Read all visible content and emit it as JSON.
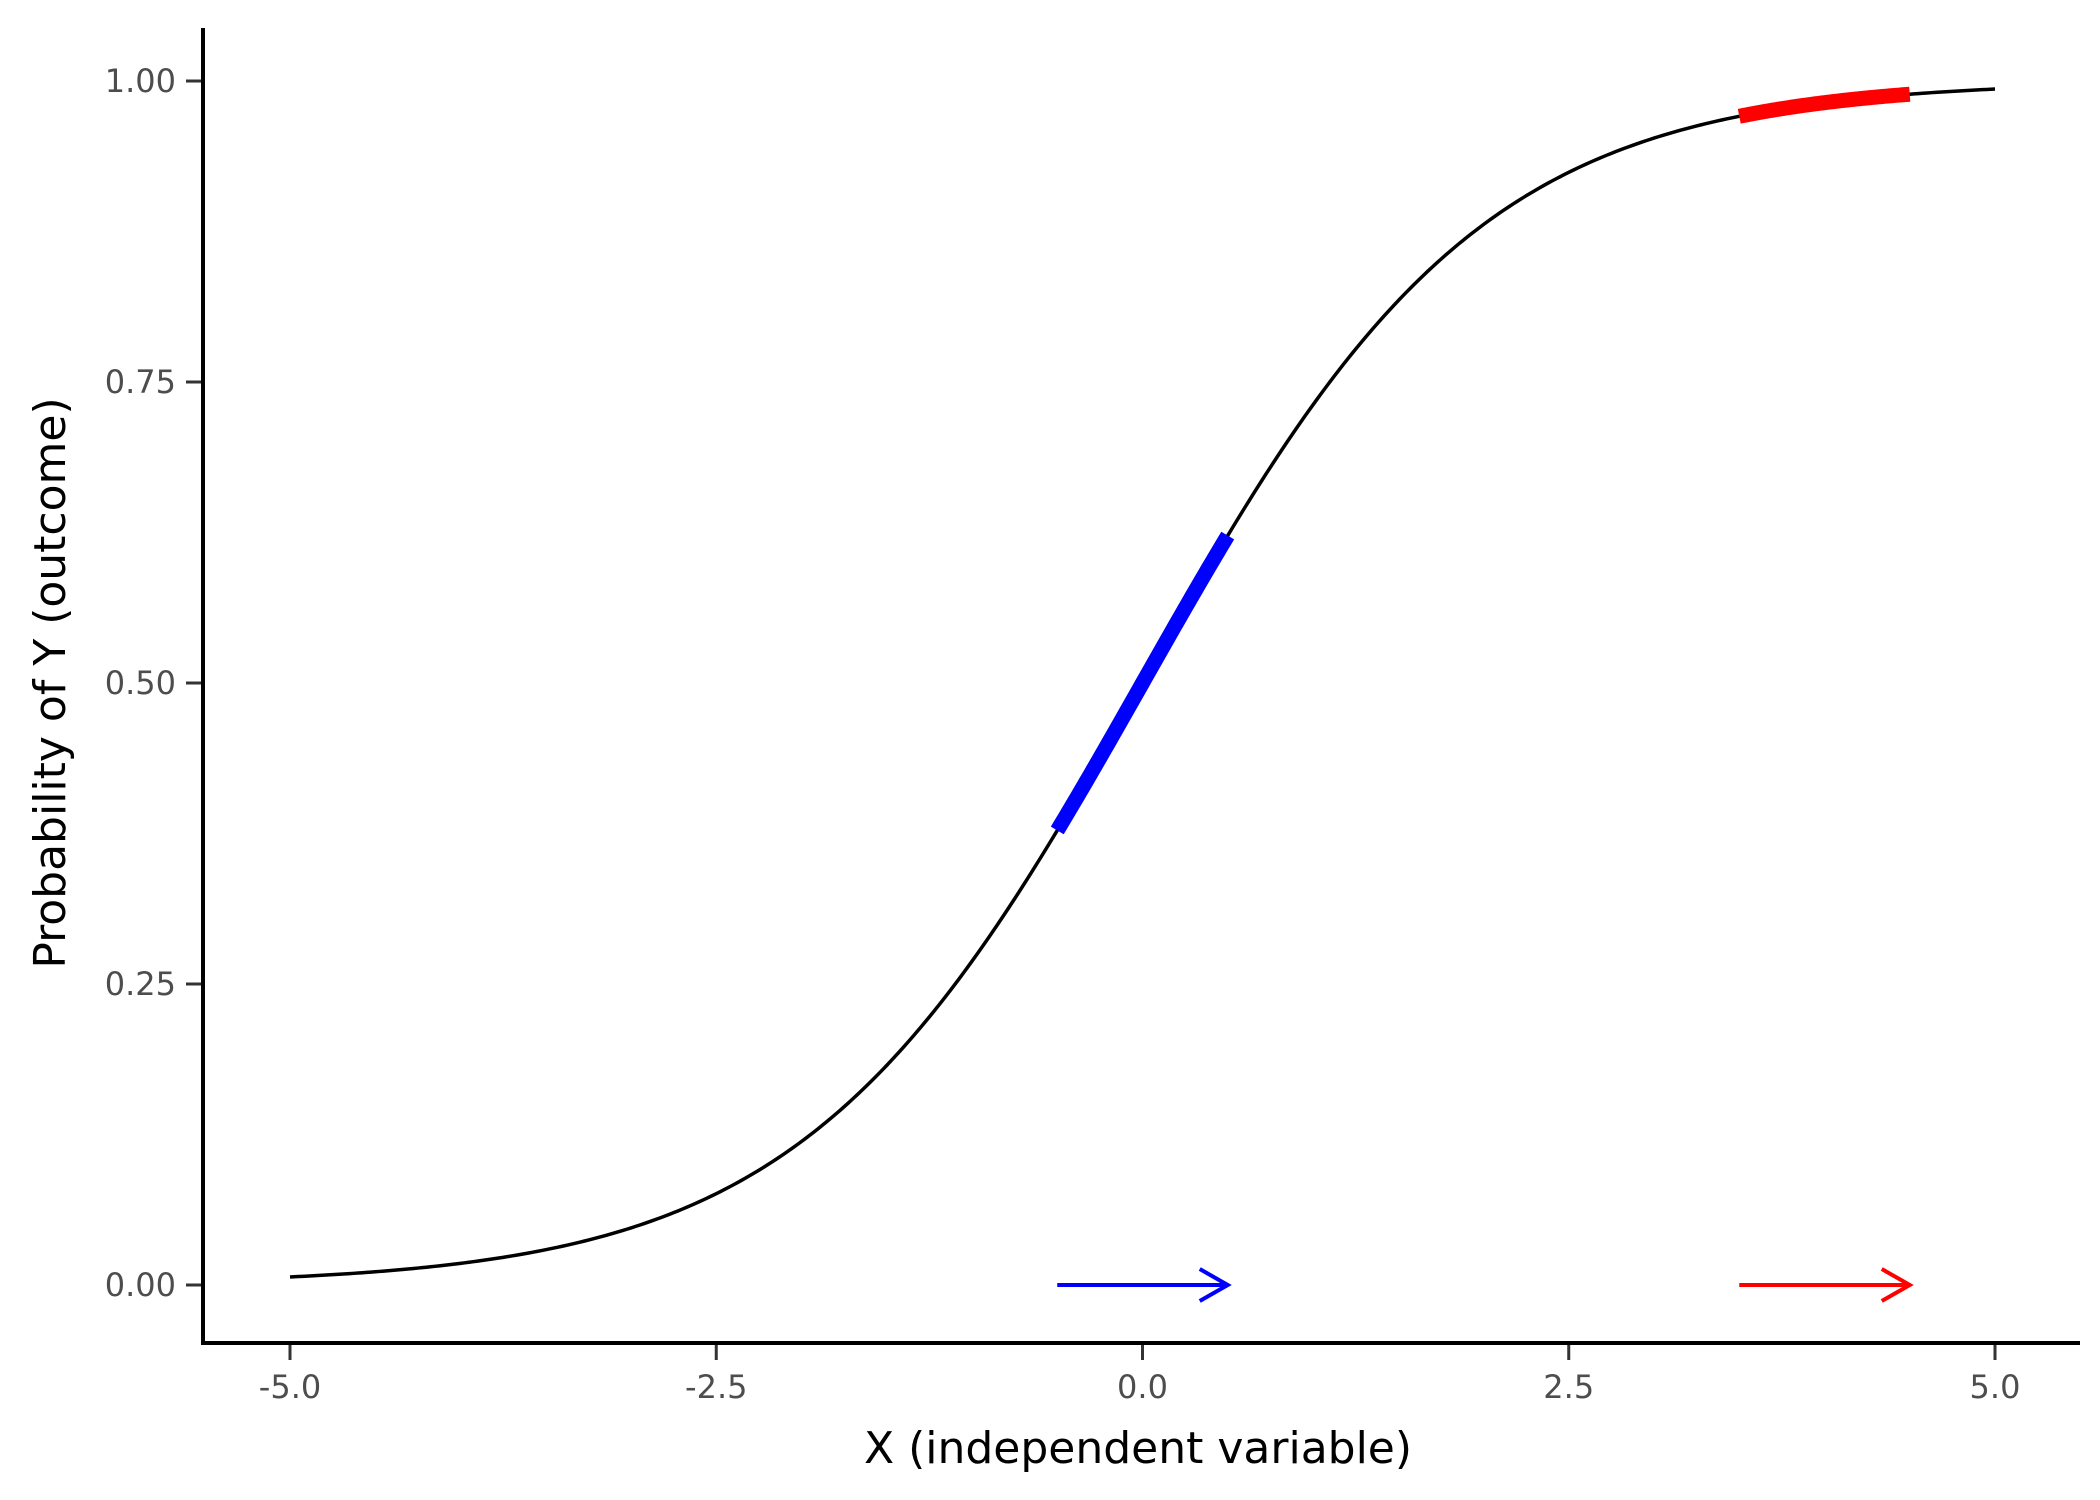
{
  "chart_data": {
    "type": "line",
    "title": "",
    "xlabel": "X (independent variable)",
    "ylabel": "Probability of Y (outcome)",
    "xlim": [
      -5.0,
      5.0
    ],
    "ylim": [
      0.0,
      1.0
    ],
    "x_ticks": [
      "-5.0",
      "-2.5",
      "0.0",
      "2.5",
      "5.0"
    ],
    "y_ticks": [
      "0.00",
      "0.25",
      "0.50",
      "0.75",
      "1.00"
    ],
    "grid": false,
    "legend": "none",
    "series": [
      {
        "function": "logistic",
        "description_formula": "y = 1 / (1 + exp(-x))",
        "x_range": [
          -5.0,
          5.0
        ],
        "color": "#000000",
        "style": "thin"
      }
    ],
    "highlights": [
      {
        "x_range": [
          -0.5,
          0.5
        ],
        "color": "#0000ff",
        "style": "thick"
      },
      {
        "x_range": [
          3.5,
          4.5
        ],
        "color": "#ff0000",
        "style": "thick"
      }
    ],
    "arrows": [
      {
        "x_start": -0.5,
        "x_end": 0.5,
        "y": 0.0,
        "color": "#0000ff"
      },
      {
        "x_start": 3.5,
        "x_end": 4.5,
        "y": 0.0,
        "color": "#ff0000"
      }
    ]
  }
}
